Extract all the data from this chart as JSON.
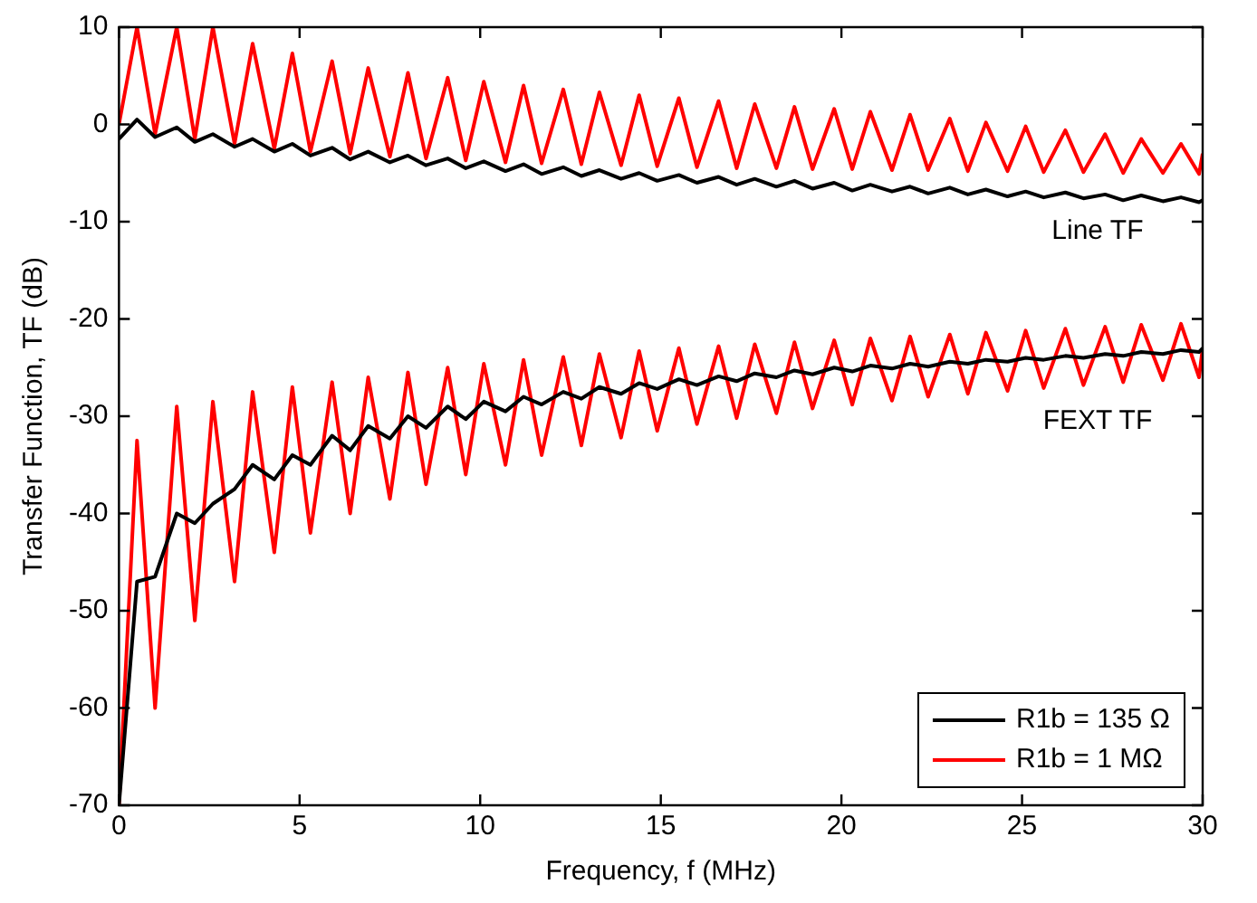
{
  "chart_data": {
    "type": "line",
    "xlabel": "Frequency, f (MHz)",
    "ylabel": "Transfer Function, TF (dB)",
    "x": [
      0,
      0.5,
      1.0,
      1.6,
      2.1,
      2.6,
      3.2,
      3.7,
      4.3,
      4.8,
      5.3,
      5.9,
      6.4,
      6.9,
      7.5,
      8.0,
      8.5,
      9.1,
      9.6,
      10.1,
      10.7,
      11.2,
      11.7,
      12.3,
      12.8,
      13.3,
      13.9,
      14.4,
      14.9,
      15.5,
      16.0,
      16.6,
      17.1,
      17.6,
      18.2,
      18.7,
      19.2,
      19.8,
      20.3,
      20.8,
      21.4,
      21.9,
      22.4,
      23.0,
      23.5,
      24.0,
      24.6,
      25.1,
      25.6,
      26.2,
      26.7,
      27.3,
      27.8,
      28.3,
      28.9,
      29.4,
      29.9,
      30
    ],
    "series": [
      {
        "name": "R1b = 135 Ω",
        "color": "#000000",
        "values": [
          -1.5,
          0.5,
          -1.3,
          -0.3,
          -1.8,
          -1.0,
          -2.3,
          -1.5,
          -2.8,
          -2.0,
          -3.2,
          -2.4,
          -3.6,
          -2.8,
          -3.9,
          -3.2,
          -4.2,
          -3.5,
          -4.5,
          -3.8,
          -4.8,
          -4.1,
          -5.1,
          -4.4,
          -5.3,
          -4.7,
          -5.6,
          -5.0,
          -5.8,
          -5.2,
          -6.0,
          -5.4,
          -6.2,
          -5.6,
          -6.4,
          -5.8,
          -6.6,
          -6.0,
          -6.8,
          -6.2,
          -6.9,
          -6.4,
          -7.1,
          -6.5,
          -7.2,
          -6.7,
          -7.4,
          -6.9,
          -7.5,
          -7.0,
          -7.6,
          -7.2,
          -7.8,
          -7.3,
          -7.9,
          -7.5,
          -8.0,
          -7.8
        ]
      },
      {
        "name": "R1b = 1 MΩ",
        "color": "#ff0000",
        "values": [
          0,
          10,
          -1,
          10,
          -1.5,
          10,
          -2,
          8.3,
          -2.5,
          7.3,
          -2.8,
          6.5,
          -3,
          5.8,
          -3.3,
          5.3,
          -3.5,
          4.8,
          -3.7,
          4.4,
          -3.9,
          4.0,
          -4,
          3.6,
          -4.1,
          3.3,
          -4.2,
          3.0,
          -4.3,
          2.7,
          -4.4,
          2.4,
          -4.5,
          2.1,
          -4.5,
          1.8,
          -4.6,
          1.6,
          -4.6,
          1.3,
          -4.7,
          1.0,
          -4.7,
          0.6,
          -4.8,
          0.2,
          -4.8,
          -0.2,
          -4.9,
          -0.6,
          -4.9,
          -1.0,
          -5,
          -1.5,
          -5,
          -2.0,
          -5.1,
          -3
        ]
      },
      {
        "color": "#000000",
        "values": [
          -70,
          -47,
          -46.5,
          -40,
          -41,
          -39,
          -37.5,
          -35,
          -36.5,
          -34,
          -35,
          -32,
          -33.5,
          -31,
          -32.3,
          -30,
          -31.2,
          -29,
          -30.3,
          -28.5,
          -29.5,
          -28,
          -28.8,
          -27.5,
          -28.2,
          -27,
          -27.7,
          -26.6,
          -27.2,
          -26.2,
          -26.8,
          -25.9,
          -26.4,
          -25.6,
          -26,
          -25.3,
          -25.7,
          -25,
          -25.4,
          -24.8,
          -25.1,
          -24.6,
          -24.9,
          -24.4,
          -24.6,
          -24.2,
          -24.4,
          -24,
          -24.2,
          -23.8,
          -24,
          -23.6,
          -23.8,
          -23.4,
          -23.6,
          -23.2,
          -23.4,
          -23
        ]
      },
      {
        "color": "#ff0000",
        "values": [
          -70,
          -32.5,
          -60,
          -29,
          -51,
          -28.5,
          -47,
          -27.5,
          -44,
          -27,
          -42,
          -26.5,
          -40,
          -26,
          -38.5,
          -25.5,
          -37,
          -25,
          -36,
          -24.6,
          -35,
          -24.2,
          -34,
          -23.9,
          -33,
          -23.6,
          -32.2,
          -23.3,
          -31.5,
          -23,
          -30.8,
          -22.8,
          -30.2,
          -22.6,
          -29.7,
          -22.4,
          -29.2,
          -22.2,
          -28.8,
          -22,
          -28.4,
          -21.8,
          -28,
          -21.6,
          -27.7,
          -21.4,
          -27.4,
          -21.2,
          -27.1,
          -21,
          -26.8,
          -20.8,
          -26.5,
          -20.6,
          -26.3,
          -20.5,
          -26,
          -23
        ]
      }
    ],
    "xlim": [
      0,
      30
    ],
    "xticks": [
      0,
      5,
      10,
      15,
      20,
      25,
      30
    ],
    "ylim": [
      -70,
      10
    ],
    "yticks": [
      -70,
      -60,
      -50,
      -40,
      -30,
      -20,
      -10,
      0,
      10
    ],
    "grid": false,
    "legend": "bottom right",
    "marker": "none",
    "line_style": "solid",
    "annotations": [
      "Line TF",
      "FEXT TF"
    ]
  }
}
